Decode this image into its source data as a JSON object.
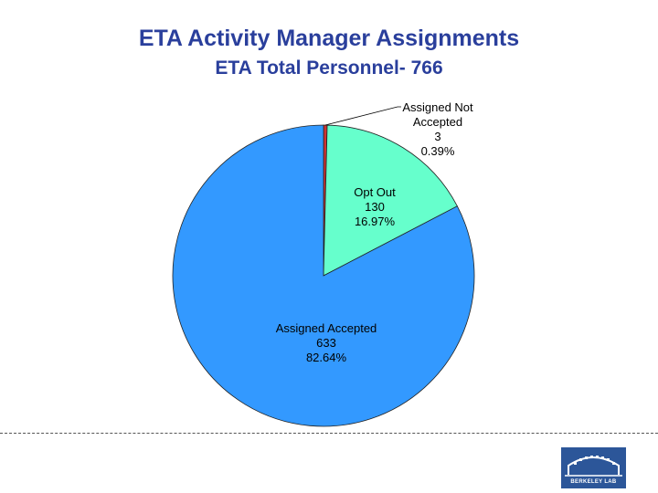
{
  "header": {
    "title": "ETA Activity Manager Assignments",
    "subtitle": "ETA Total Personnel- 766"
  },
  "chart_data": {
    "type": "pie",
    "title": "ETA Activity Manager Assignments",
    "subtitle": "ETA Total Personnel- 766",
    "slices": [
      {
        "label": "Assigned Not Accepted",
        "label_lines": [
          "Assigned Not",
          "Accepted"
        ],
        "value": 3,
        "percent": "0.39%",
        "color": "#cc3333"
      },
      {
        "label": "Opt Out",
        "label_lines": [
          "Opt Out"
        ],
        "value": 130,
        "percent": "16.97%",
        "color": "#66ffcc"
      },
      {
        "label": "Assigned Accepted",
        "label_lines": [
          "Assigned Accepted"
        ],
        "value": 633,
        "percent": "82.64%",
        "color": "#3399ff"
      }
    ]
  },
  "footer": {
    "logo_text": "BERKELEY LAB"
  }
}
